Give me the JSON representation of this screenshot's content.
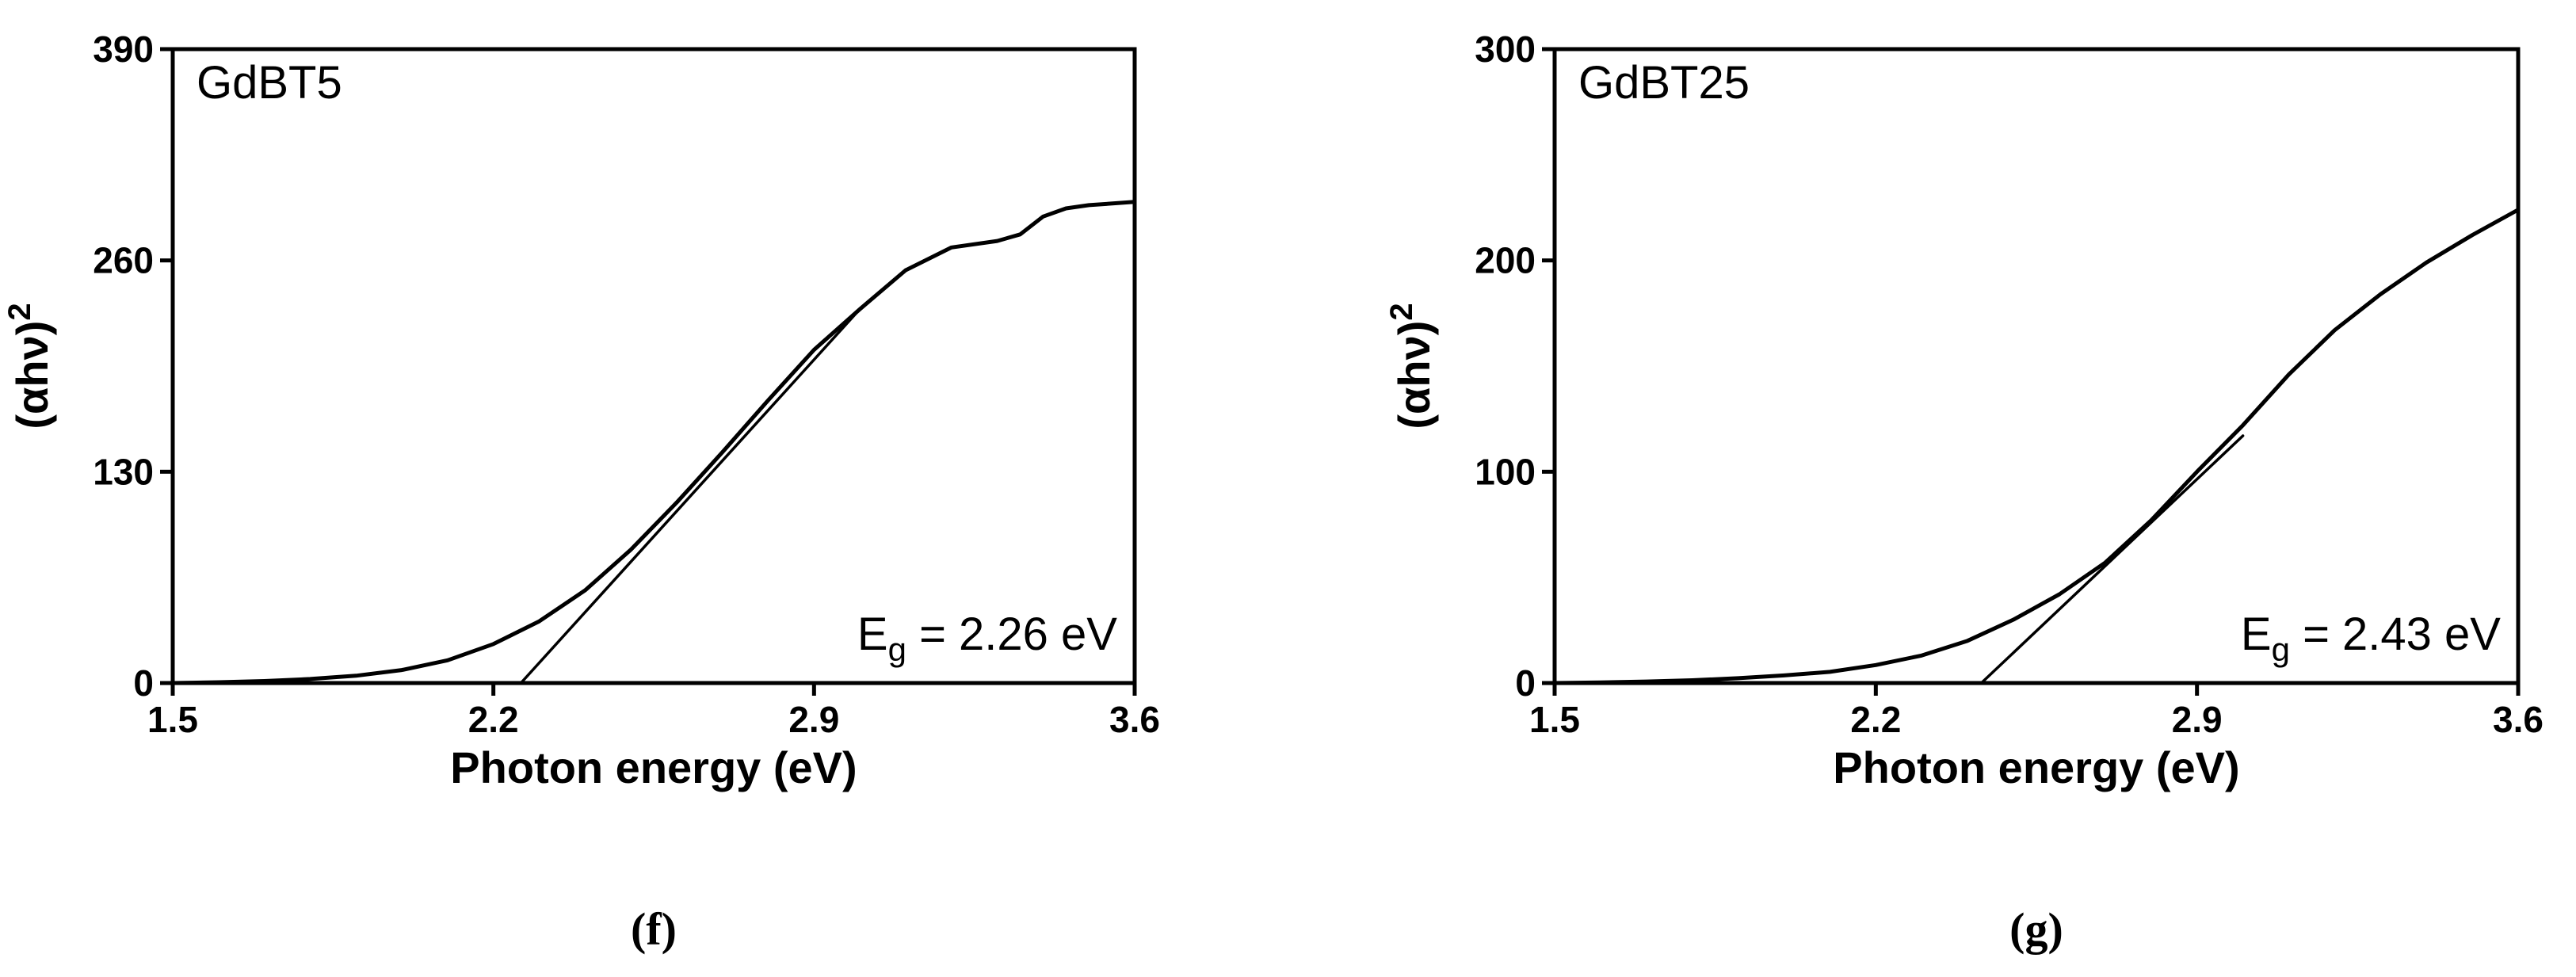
{
  "chart_data": [
    {
      "type": "line",
      "panel": "(f)",
      "annotation": "GdBT5",
      "band_gap_label": "= 2.26 eV",
      "band_gap_symbol": "E",
      "band_gap_subscript": "g",
      "band_gap_eV": 2.26,
      "xlabel": "Photon energy (eV)",
      "ylabel": "(αhν)",
      "ylabel_superscript": "2",
      "xlim": [
        1.5,
        3.6
      ],
      "ylim": [
        0,
        390
      ],
      "xticks": [
        "1.5",
        "2.2",
        "2.9",
        "3.6"
      ],
      "yticks": [
        "0",
        "130",
        "260",
        "390"
      ],
      "xtick_values": [
        1.5,
        2.2,
        2.9,
        3.6
      ],
      "ytick_values": [
        0,
        130,
        260,
        390
      ],
      "series": [
        {
          "x": [
            1.5,
            1.6,
            1.7,
            1.8,
            1.9,
            2.0,
            2.1,
            2.2,
            2.3,
            2.4,
            2.5,
            2.6,
            2.7,
            2.8,
            2.9,
            3.0,
            3.1,
            3.2,
            3.3,
            3.35,
            3.4,
            3.45,
            3.5,
            3.6
          ],
          "y": [
            0,
            0.5,
            1.2,
            2.5,
            4.5,
            8,
            14,
            24,
            38,
            57,
            82,
            111,
            142,
            174,
            205,
            230,
            254,
            268,
            272,
            276,
            287,
            292,
            294,
            296
          ]
        },
        {
          "x": [
            2.26,
            3.0
          ],
          "y": [
            0,
            230
          ]
        }
      ]
    },
    {
      "type": "line",
      "panel": "(g)",
      "annotation": "GdBT25",
      "band_gap_label": "= 2.43 eV",
      "band_gap_symbol": "E",
      "band_gap_subscript": "g",
      "band_gap_eV": 2.43,
      "xlabel": "Photon energy (eV)",
      "ylabel": "(αhν)",
      "ylabel_superscript": "2",
      "xlim": [
        1.5,
        3.6
      ],
      "ylim": [
        0,
        300
      ],
      "xticks": [
        "1.5",
        "2.2",
        "2.9",
        "3.6"
      ],
      "yticks": [
        "0",
        "100",
        "200",
        "300"
      ],
      "xtick_values": [
        1.5,
        2.2,
        2.9,
        3.6
      ],
      "ytick_values": [
        0,
        100,
        200,
        300
      ],
      "series": [
        {
          "x": [
            1.5,
            1.6,
            1.7,
            1.8,
            1.9,
            2.0,
            2.1,
            2.2,
            2.3,
            2.4,
            2.5,
            2.6,
            2.7,
            2.8,
            2.9,
            3.0,
            3.1,
            3.2,
            3.3,
            3.4,
            3.5,
            3.6
          ],
          "y": [
            0,
            0.3,
            0.7,
            1.3,
            2.3,
            3.6,
            5.3,
            8.5,
            13,
            20,
            30,
            42,
            57,
            77,
            100,
            122,
            146,
            167,
            184,
            199,
            212,
            224
          ]
        },
        {
          "x": [
            2.43,
            3.0
          ],
          "y": [
            0,
            117
          ]
        }
      ]
    }
  ]
}
